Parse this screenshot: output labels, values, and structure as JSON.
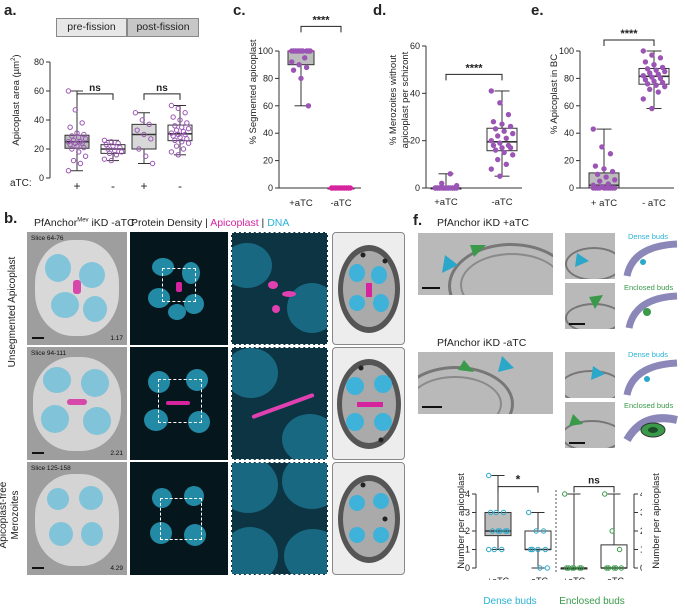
{
  "panels": {
    "a": "a.",
    "b": "b.",
    "c": "c.",
    "d": "d.",
    "e": "e.",
    "f": "f."
  },
  "panel_a": {
    "headers": [
      "pre-fission",
      "post-fission"
    ],
    "ylabel": "Apicoplast area (µm²)",
    "ylabel_main": "Apicoplast area (µm",
    "ylabel_sup": "2",
    "ylabel_end": ")",
    "yticks": [
      "0",
      "20",
      "40",
      "60",
      "80"
    ],
    "atc_label": "aTC:",
    "xticks": [
      "+",
      "-",
      "+",
      "-"
    ],
    "sig": [
      "ns",
      "ns"
    ]
  },
  "panel_c": {
    "ylabel": "% Segmented apicoplast",
    "yticks": [
      "0",
      "20",
      "40",
      "60",
      "80",
      "100"
    ],
    "xticks": [
      "+aTC",
      "-aTC"
    ],
    "sig": "****"
  },
  "panel_d": {
    "ylabel_1": "% Merozoites without",
    "ylabel_2": "apicoplast per schizont",
    "yticks": [
      "0",
      "20",
      "40",
      "60"
    ],
    "xticks": [
      "+aTC",
      "-aTC"
    ],
    "sig": "****"
  },
  "panel_e": {
    "ylabel": "% Apicoplast in BC",
    "yticks": [
      "0",
      "20",
      "40",
      "60",
      "80",
      "100"
    ],
    "xticks": [
      "+ aTC",
      "- aTC"
    ],
    "sig": "****"
  },
  "panel_b": {
    "title_pre": "PfAnchor",
    "title_sup": "Mev",
    "title_post": " iKD -aTC",
    "col2_pre": "Protein Density | ",
    "col2_apico": "Apicoplast",
    "col2_mid": " | ",
    "col2_dna": "DNA",
    "row_labels": [
      "Unsegmented Apicoplast",
      "Apicoplast-free",
      "Merozoites"
    ],
    "slices": [
      "Slice 64-76",
      "Slice 94-111",
      "Slice 125-158"
    ],
    "corners": [
      "1.17",
      "2.21",
      "4.29"
    ]
  },
  "panel_f": {
    "title_top": "PfAnchor iKD +aTC",
    "title_bottom": "PfAnchor iKD -aTC",
    "dense_label": "Dense buds",
    "enclosed_label": "Enclosed buds",
    "dense_label_2": "Dense  buds",
    "enclosed_label_2": "Enclosed buds",
    "ylabel_left": "Number per apicoplast",
    "ylabel_right": "Number per apicoplast",
    "yticks": [
      "0",
      "1",
      "2",
      "3",
      "4"
    ],
    "xticks": [
      "+aTC",
      "-aTC",
      "+aTC",
      "-aTC"
    ],
    "sig": [
      "*",
      "ns"
    ],
    "group_labels": [
      "Dense  buds",
      "Enclosed buds"
    ]
  },
  "colors": {
    "magenta": "#d6249f",
    "cyan": "#2ab3d6",
    "green": "#3a9a4a",
    "purple": "#9a55b5",
    "teal": "#2aa7c9"
  },
  "chart_data": [
    {
      "type": "box",
      "panel": "a",
      "ylabel": "Apicoplast area (µm²)",
      "ylim": [
        0,
        80
      ],
      "categories": [
        "+",
        "-",
        "+",
        "-"
      ],
      "groups": [
        "pre-fission",
        "pre-fission",
        "post-fission",
        "post-fission"
      ],
      "series": [
        {
          "values": [
            60,
            47,
            38,
            35,
            31,
            30,
            29,
            28,
            27,
            26,
            25,
            25,
            24,
            24,
            23,
            22,
            21,
            20,
            18,
            15,
            12,
            10,
            5
          ]
        },
        {
          "values": [
            26,
            25,
            24,
            23,
            22,
            21,
            20,
            19,
            18,
            17,
            16,
            13,
            12
          ]
        },
        {
          "values": [
            45,
            40,
            37,
            33,
            30,
            27,
            20,
            15,
            10
          ]
        },
        {
          "values": [
            50,
            48,
            45,
            42,
            40,
            38,
            36,
            35,
            34,
            33,
            32,
            31,
            30,
            30,
            29,
            28,
            27,
            26,
            25,
            24,
            22,
            20,
            18,
            16
          ]
        }
      ]
    },
    {
      "type": "box",
      "panel": "c",
      "ylabel": "% Segmented apicoplast",
      "ylim": [
        0,
        100
      ],
      "categories": [
        "+aTC",
        "-aTC"
      ],
      "series": [
        {
          "values": [
            100,
            100,
            100,
            100,
            100,
            100,
            100,
            100,
            100,
            100,
            95,
            92,
            90,
            88,
            86,
            80,
            60
          ]
        },
        {
          "values": [
            0,
            0,
            0,
            0,
            0,
            0,
            0,
            0,
            0,
            0,
            0,
            0
          ]
        }
      ]
    },
    {
      "type": "box",
      "panel": "d",
      "ylabel": "% Merozoites without apicoplast per schizont",
      "ylim": [
        0,
        60
      ],
      "categories": [
        "+aTC",
        "-aTC"
      ],
      "series": [
        {
          "values": [
            0,
            0,
            0,
            0,
            0,
            0,
            0,
            0,
            0,
            0,
            0,
            0,
            0,
            0,
            0,
            0,
            0,
            0,
            0,
            1,
            2,
            6
          ]
        },
        {
          "values": [
            41,
            36,
            31,
            28,
            27,
            26,
            25,
            24,
            23,
            22,
            21,
            20,
            19,
            18,
            18,
            17,
            17,
            16,
            15,
            14,
            12,
            10,
            8,
            5
          ]
        }
      ]
    },
    {
      "type": "box",
      "panel": "e",
      "ylabel": "% Apicoplast in BC",
      "ylim": [
        0,
        100
      ],
      "categories": [
        "+ aTC",
        "- aTC"
      ],
      "series": [
        {
          "values": [
            43,
            30,
            25,
            16,
            14,
            12,
            10,
            8,
            6,
            5,
            3,
            2,
            1,
            0,
            0,
            0,
            0,
            0,
            0,
            0,
            0,
            0,
            0
          ]
        },
        {
          "values": [
            100,
            97,
            95,
            92,
            90,
            88,
            87,
            86,
            85,
            84,
            83,
            82,
            81,
            80,
            79,
            78,
            77,
            76,
            75,
            74,
            72,
            70,
            65,
            58
          ]
        }
      ]
    },
    {
      "type": "box",
      "panel": "f",
      "ylabel": "Number per apicoplast",
      "ylim": [
        0,
        5
      ],
      "categories": [
        "+aTC",
        "-aTC",
        "+aTC",
        "-aTC"
      ],
      "groups": [
        "Dense  buds",
        "Dense  buds",
        "Enclosed buds",
        "Enclosed buds"
      ],
      "series": [
        {
          "values": [
            5,
            3,
            3,
            3,
            2,
            2,
            2,
            2,
            2,
            1,
            1,
            1
          ]
        },
        {
          "values": [
            3,
            2,
            2,
            1,
            1,
            1,
            1,
            0,
            0
          ]
        },
        {
          "values": [
            4,
            0,
            0,
            0,
            0,
            0,
            0
          ]
        },
        {
          "values": [
            4,
            2,
            1,
            0,
            0,
            0,
            0,
            0
          ]
        }
      ]
    }
  ]
}
